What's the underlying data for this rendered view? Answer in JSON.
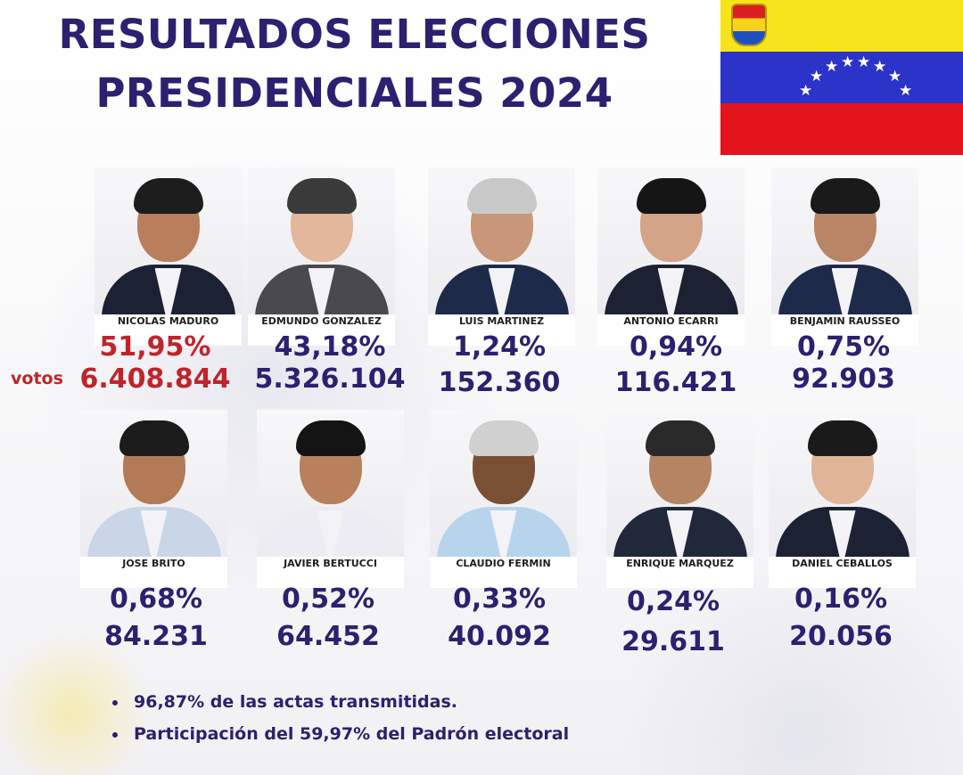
{
  "title": {
    "line1": "RESULTADOS ELECCIONES",
    "line2": "PRESIDENCIALES 2024"
  },
  "flag": {
    "colors": [
      "#f6e41a",
      "#2b33c9",
      "#e3141b"
    ],
    "stars": 8,
    "coat_of_arms_icon": "venezuela-coat-of-arms"
  },
  "votos_label": "votos",
  "candidates": [
    {
      "name": "NICOLAS MADURO",
      "percent": "51,95%",
      "votes": "6.408.844",
      "highlight": true
    },
    {
      "name": "EDMUNDO GONZALEZ",
      "percent": "43,18%",
      "votes": "5.326.104"
    },
    {
      "name": "LUIS MARTINEZ",
      "percent": "1,24%",
      "votes": "152.360"
    },
    {
      "name": "ANTONIO ECARRI",
      "percent": "0,94%",
      "votes": "116.421"
    },
    {
      "name": "BENJAMIN RAUSSEO",
      "percent": "0,75%",
      "votes": "92.903"
    },
    {
      "name": "JOSE BRITO",
      "percent": "0,68%",
      "votes": "84.231"
    },
    {
      "name": "JAVIER BERTUCCI",
      "percent": "0,52%",
      "votes": "64.452"
    },
    {
      "name": "CLAUDIO FERMIN",
      "percent": "0,33%",
      "votes": "40.092"
    },
    {
      "name": "ENRIQUE MARQUEZ",
      "percent": "0,24%",
      "votes": "29.611"
    },
    {
      "name": "DANIEL CEBALLOS",
      "percent": "0,16%",
      "votes": "20.056"
    }
  ],
  "notes": [
    "96,87% de las actas transmitidas.",
    "Participación del 59,97% del Padrón electoral"
  ],
  "colors": {
    "title": "#2d2070",
    "highlight": "#c0242b"
  }
}
